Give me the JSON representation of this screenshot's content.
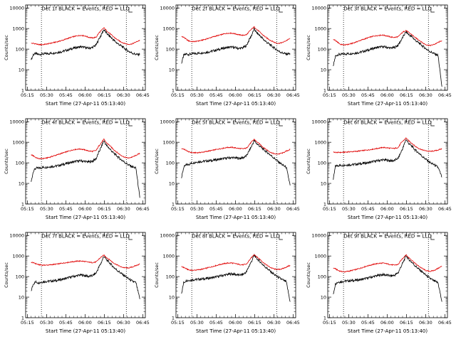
{
  "charts": {
    "time_labels": [
      "05:15",
      "05:30",
      "05:45",
      "06:00",
      "06:15",
      "06:30",
      "06:45"
    ],
    "y_tick_labels": [
      "1",
      "10",
      "100",
      "1000",
      "10000"
    ],
    "series_colors": {
      "events": "#000000",
      "lld": "#e00000"
    }
  },
  "chart_data": [
    {
      "type": "line",
      "title": "Det 1f BLACK = Events, RED = LLD",
      "xlabel": "Start Time (27-Apr-11 05:13:40)",
      "ylabel": "Counts/sec",
      "x_unit": "minutes after 05:13:40",
      "x": [
        4.3,
        6,
        8,
        10,
        13,
        16,
        19,
        22,
        25,
        28,
        31,
        34,
        37,
        40,
        43,
        46,
        49,
        52,
        55,
        57,
        59,
        61,
        63,
        66,
        68,
        71,
        74,
        77,
        80,
        83,
        86,
        89
      ],
      "series": [
        {
          "name": "BLACK = Events",
          "values": [
            30,
            55,
            60,
            55,
            58,
            60,
            62,
            65,
            70,
            75,
            85,
            95,
            110,
            120,
            130,
            120,
            110,
            120,
            160,
            300,
            500,
            900,
            600,
            400,
            300,
            200,
            150,
            110,
            80,
            65,
            55,
            55
          ]
        },
        {
          "name": "RED = LLD",
          "values": [
            190,
            190,
            180,
            165,
            165,
            175,
            190,
            210,
            230,
            260,
            300,
            350,
            400,
            440,
            470,
            440,
            380,
            350,
            380,
            600,
            800,
            1100,
            800,
            550,
            420,
            300,
            230,
            190,
            170,
            180,
            220,
            270
          ]
        }
      ]
    },
    {
      "type": "line",
      "title": "Det 2f BLACK = Events, RED = LLD",
      "xlabel": "Start Time (27-Apr-11 05:13:40)",
      "ylabel": "Counts/sec",
      "x_unit": "minutes after 05:13:40",
      "x": [
        4.3,
        6,
        8,
        10,
        13,
        16,
        19,
        22,
        25,
        28,
        31,
        34,
        37,
        40,
        43,
        46,
        49,
        52,
        55,
        57,
        59,
        61,
        63,
        66,
        68,
        71,
        74,
        77,
        80,
        83,
        86,
        89
      ],
      "series": [
        {
          "name": "BLACK = Events",
          "values": [
            20,
            50,
            58,
            55,
            60,
            62,
            65,
            68,
            72,
            80,
            88,
            98,
            110,
            120,
            125,
            118,
            108,
            115,
            150,
            280,
            480,
            950,
            620,
            420,
            300,
            210,
            150,
            110,
            80,
            65,
            58,
            60
          ]
        },
        {
          "name": "RED = LLD",
          "values": [
            420,
            380,
            300,
            250,
            230,
            240,
            260,
            290,
            330,
            380,
            430,
            480,
            540,
            590,
            600,
            560,
            500,
            470,
            500,
            700,
            950,
            1200,
            900,
            620,
            470,
            340,
            260,
            210,
            190,
            210,
            260,
            330
          ]
        }
      ]
    },
    {
      "type": "line",
      "title": "Det 3f BLACK = Events, RED = LLD",
      "xlabel": "Start Time (27-Apr-11 05:13:40)",
      "ylabel": "Counts/sec",
      "x_unit": "minutes after 05:13:40",
      "x": [
        4.3,
        6,
        8,
        10,
        13,
        16,
        19,
        22,
        25,
        28,
        31,
        34,
        37,
        40,
        43,
        46,
        49,
        52,
        55,
        57,
        59,
        61,
        63,
        66,
        68,
        71,
        74,
        77,
        80,
        83,
        86,
        89
      ],
      "series": [
        {
          "name": "BLACK = Events",
          "values": [
            15,
            45,
            55,
            55,
            58,
            60,
            62,
            65,
            70,
            78,
            88,
            100,
            115,
            125,
            130,
            122,
            112,
            120,
            160,
            260,
            420,
            700,
            520,
            380,
            280,
            200,
            140,
            100,
            75,
            60,
            50,
            1.5
          ]
        },
        {
          "name": "RED = LLD",
          "values": [
            300,
            260,
            210,
            170,
            160,
            170,
            190,
            220,
            260,
            300,
            350,
            400,
            440,
            470,
            480,
            440,
            390,
            370,
            400,
            550,
            700,
            820,
            650,
            480,
            370,
            280,
            200,
            160,
            150,
            170,
            210,
            260
          ]
        }
      ]
    },
    {
      "type": "line",
      "title": "Det 4f BLACK = Events, RED = LLD",
      "xlabel": "Start Time (27-Apr-11 05:13:40)",
      "ylabel": "Counts/sec",
      "x_unit": "minutes after 05:13:40",
      "x": [
        4.3,
        6,
        8,
        10,
        13,
        16,
        19,
        22,
        25,
        28,
        31,
        34,
        37,
        40,
        43,
        46,
        49,
        52,
        55,
        57,
        59,
        61,
        63,
        66,
        68,
        71,
        74,
        77,
        80,
        83,
        86,
        89
      ],
      "series": [
        {
          "name": "BLACK = Events",
          "values": [
            12,
            40,
            55,
            55,
            60,
            62,
            65,
            68,
            72,
            80,
            90,
            100,
            110,
            120,
            125,
            118,
            110,
            120,
            160,
            320,
            600,
            1200,
            700,
            450,
            320,
            220,
            150,
            110,
            80,
            65,
            55,
            2
          ]
        },
        {
          "name": "RED = LLD",
          "values": [
            250,
            220,
            180,
            160,
            160,
            170,
            190,
            220,
            250,
            290,
            330,
            380,
            430,
            460,
            470,
            430,
            380,
            360,
            400,
            650,
            950,
            1400,
            950,
            650,
            480,
            330,
            240,
            190,
            170,
            190,
            230,
            290
          ]
        }
      ]
    },
    {
      "type": "line",
      "title": "Det 5f BLACK = Events, RED = LLD",
      "xlabel": "Start Time (27-Apr-11 05:13:40)",
      "ylabel": "Counts/sec",
      "x_unit": "minutes after 05:13:40",
      "x": [
        4.3,
        6,
        8,
        10,
        13,
        16,
        19,
        22,
        25,
        28,
        31,
        34,
        37,
        40,
        43,
        46,
        49,
        52,
        55,
        57,
        59,
        61,
        63,
        66,
        68,
        71,
        74,
        77,
        80,
        83,
        86,
        89
      ],
      "series": [
        {
          "name": "BLACK = Events",
          "values": [
            18,
            60,
            80,
            85,
            100,
            110,
            115,
            120,
            125,
            130,
            140,
            150,
            160,
            170,
            180,
            175,
            165,
            175,
            220,
            380,
            650,
            1200,
            850,
            600,
            450,
            330,
            230,
            160,
            110,
            80,
            60,
            8
          ]
        },
        {
          "name": "RED = LLD",
          "values": [
            500,
            470,
            400,
            340,
            310,
            310,
            320,
            340,
            370,
            400,
            440,
            480,
            520,
            560,
            570,
            540,
            500,
            480,
            520,
            750,
            1050,
            1400,
            1050,
            750,
            570,
            420,
            320,
            270,
            270,
            300,
            370,
            450
          ]
        }
      ]
    },
    {
      "type": "line",
      "title": "Det 6f BLACK = Events, RED = LLD",
      "xlabel": "Start Time (27-Apr-11 05:13:40)",
      "ylabel": "Counts/sec",
      "x_unit": "minutes after 05:13:40",
      "x": [
        4.3,
        6,
        8,
        10,
        13,
        16,
        19,
        22,
        25,
        28,
        31,
        34,
        37,
        40,
        43,
        46,
        49,
        52,
        55,
        57,
        59,
        61,
        63,
        66,
        68,
        71,
        74,
        77,
        80,
        83,
        86,
        89
      ],
      "series": [
        {
          "name": "BLACK = Events",
          "values": [
            15,
            70,
            75,
            75,
            78,
            80,
            82,
            85,
            90,
            95,
            100,
            110,
            120,
            130,
            140,
            135,
            125,
            130,
            170,
            320,
            600,
            1400,
            900,
            600,
            430,
            300,
            200,
            140,
            100,
            80,
            60,
            20
          ]
        },
        {
          "name": "RED = LLD",
          "values": [
            330,
            320,
            320,
            320,
            330,
            340,
            350,
            360,
            380,
            400,
            420,
            450,
            480,
            520,
            560,
            540,
            510,
            500,
            560,
            900,
            1200,
            1600,
            1200,
            850,
            650,
            500,
            420,
            380,
            360,
            380,
            420,
            480
          ]
        }
      ]
    },
    {
      "type": "line",
      "title": "Det 7f BLACK = Events, RED = LLD",
      "xlabel": "Start Time (27-Apr-11 05:13:40)",
      "ylabel": "Counts/sec",
      "x_unit": "minutes after 05:13:40",
      "x": [
        4.3,
        6,
        8,
        10,
        13,
        16,
        19,
        22,
        25,
        28,
        31,
        34,
        37,
        40,
        43,
        46,
        49,
        52,
        55,
        57,
        59,
        61,
        63,
        66,
        68,
        71,
        74,
        77,
        80,
        83,
        86,
        89
      ],
      "series": [
        {
          "name": "BLACK = Events",
          "values": [
            20,
            45,
            55,
            50,
            55,
            58,
            60,
            62,
            66,
            72,
            80,
            90,
            100,
            110,
            120,
            112,
            102,
            110,
            150,
            280,
            480,
            1000,
            650,
            430,
            310,
            210,
            150,
            110,
            80,
            60,
            50,
            8
          ]
        },
        {
          "name": "RED = LLD",
          "values": [
            500,
            470,
            420,
            380,
            360,
            360,
            370,
            390,
            410,
            440,
            470,
            500,
            530,
            560,
            570,
            540,
            500,
            480,
            510,
            700,
            900,
            1100,
            850,
            620,
            480,
            380,
            300,
            270,
            260,
            290,
            340,
            410
          ]
        }
      ]
    },
    {
      "type": "line",
      "title": "Det 8f BLACK = Events, RED = LLD",
      "xlabel": "Start Time (27-Apr-11 05:13:40)",
      "ylabel": "Counts/sec",
      "x_unit": "minutes after 05:13:40",
      "x": [
        4.3,
        6,
        8,
        10,
        13,
        16,
        19,
        22,
        25,
        28,
        31,
        34,
        37,
        40,
        43,
        46,
        49,
        52,
        55,
        57,
        59,
        61,
        63,
        66,
        68,
        71,
        74,
        77,
        80,
        83,
        86,
        89
      ],
      "series": [
        {
          "name": "BLACK = Events",
          "values": [
            15,
            50,
            65,
            65,
            70,
            72,
            75,
            78,
            82,
            88,
            95,
            105,
            115,
            125,
            135,
            128,
            118,
            125,
            170,
            330,
            560,
            1100,
            750,
            500,
            360,
            250,
            170,
            120,
            90,
            70,
            55,
            6
          ]
        },
        {
          "name": "RED = LLD",
          "values": [
            300,
            280,
            240,
            210,
            200,
            210,
            220,
            240,
            270,
            300,
            340,
            380,
            420,
            450,
            460,
            430,
            390,
            370,
            400,
            600,
            850,
            1200,
            900,
            650,
            480,
            350,
            270,
            230,
            220,
            240,
            290,
            350
          ]
        }
      ]
    },
    {
      "type": "line",
      "title": "Det 9f BLACK = Events, RED = LLD",
      "xlabel": "Start Time (27-Apr-11 05:13:40)",
      "ylabel": "Counts/sec",
      "x_unit": "minutes after 05:13:40",
      "x": [
        4.3,
        6,
        8,
        10,
        13,
        16,
        19,
        22,
        25,
        28,
        31,
        34,
        37,
        40,
        43,
        46,
        49,
        52,
        55,
        57,
        59,
        61,
        63,
        66,
        68,
        71,
        74,
        77,
        80,
        83,
        86,
        89
      ],
      "series": [
        {
          "name": "BLACK = Events",
          "values": [
            14,
            45,
            55,
            55,
            60,
            62,
            64,
            66,
            70,
            76,
            84,
            94,
            105,
            115,
            125,
            118,
            108,
            115,
            155,
            300,
            520,
            1050,
            700,
            470,
            340,
            230,
            160,
            110,
            80,
            60,
            50,
            6
          ]
        },
        {
          "name": "RED = LLD",
          "values": [
            260,
            240,
            200,
            180,
            170,
            180,
            200,
            220,
            250,
            290,
            330,
            370,
            410,
            440,
            450,
            420,
            380,
            360,
            390,
            600,
            850,
            1150,
            850,
            600,
            440,
            320,
            240,
            190,
            180,
            200,
            250,
            320
          ]
        }
      ]
    }
  ]
}
